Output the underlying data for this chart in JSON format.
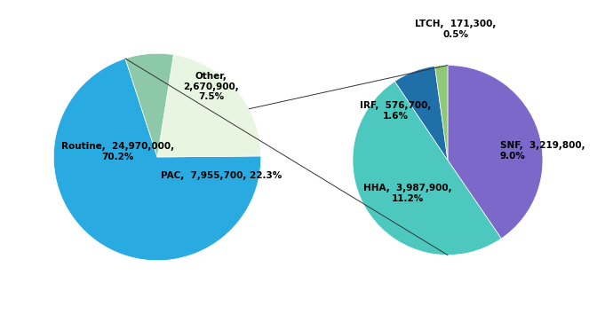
{
  "pie1": {
    "labels": [
      "Routine",
      "PAC",
      "Other"
    ],
    "values": [
      24970000,
      7955700,
      2670900
    ],
    "percentages": [
      70.2,
      22.3,
      7.5
    ],
    "colors": [
      "#29ABE2",
      "#E8F5E0",
      "#8DC8A8"
    ],
    "startangle": 108
  },
  "pie2": {
    "labels": [
      "SNF",
      "HHA",
      "IRF",
      "LTCH"
    ],
    "values": [
      3219800,
      3987900,
      576700,
      171300
    ],
    "percentages": [
      9.0,
      11.2,
      1.6,
      0.5
    ],
    "colors": [
      "#7B68C8",
      "#4DC8BE",
      "#1F6FA8",
      "#90C878"
    ],
    "startangle": 90
  },
  "connector_color": "#333333",
  "background_color": "#ffffff",
  "label_fontsize": 7.5,
  "label_color": "#000000"
}
